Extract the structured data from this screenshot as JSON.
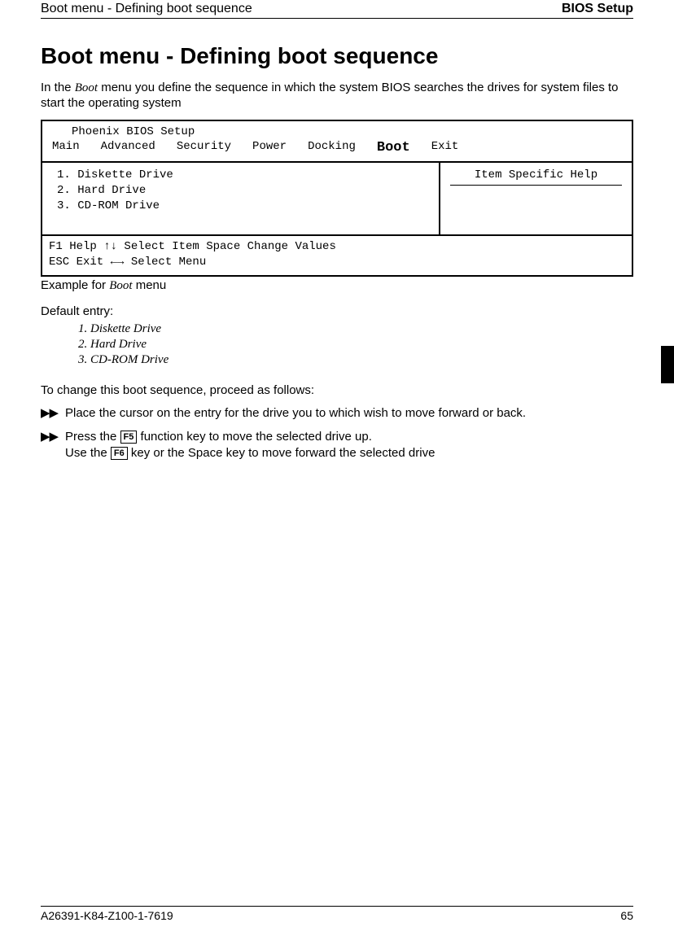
{
  "header": {
    "left": "Boot menu - Defining boot sequence",
    "right": "BIOS Setup"
  },
  "title": "Boot menu - Defining boot sequence",
  "intro_pre": "In the ",
  "intro_boot": "Boot",
  "intro_post": " menu you define the sequence in which the system BIOS searches the drives for system files to start the operating system",
  "bios": {
    "setup_title": "Phoenix BIOS Setup",
    "menu": {
      "main": "Main",
      "advanced": "Advanced",
      "security": "Security",
      "power": "Power",
      "docking": "Docking",
      "boot": "Boot",
      "exit": "Exit"
    },
    "list": {
      "i1": "1. Diskette Drive",
      "i2": "2. Hard Drive",
      "i3": "3. CD-ROM Drive"
    },
    "help_label": "Item Specific Help",
    "footer1": "F1  Help  ↑↓  Select Item  Space  Change Values",
    "footer2": "ESC Exit  ←→ Select Menu"
  },
  "caption_pre": "Example for ",
  "caption_boot": "Boot",
  "caption_post": " menu",
  "default_label": "Default entry:",
  "defaults": {
    "d1": "1. Diskette Drive",
    "d2": "2. Hard Drive",
    "d3": "3. CD-ROM Drive"
  },
  "instruct": "To change this boot sequence, proceed as follows:",
  "step1": "Place the cursor on the entry for the drive you to which wish to move forward or back.",
  "step2_pre": "Press the ",
  "step2_key1": "F5",
  "step2_mid": " function key to move the selected drive up.",
  "step2_line2_pre": "Use the ",
  "step2_key2": "F6",
  "step2_line2_post": " key or the Space key to move forward the selected drive",
  "marker": "▶▶",
  "footer": {
    "doc": "A26391-K84-Z100-1-7619",
    "page": "65"
  }
}
